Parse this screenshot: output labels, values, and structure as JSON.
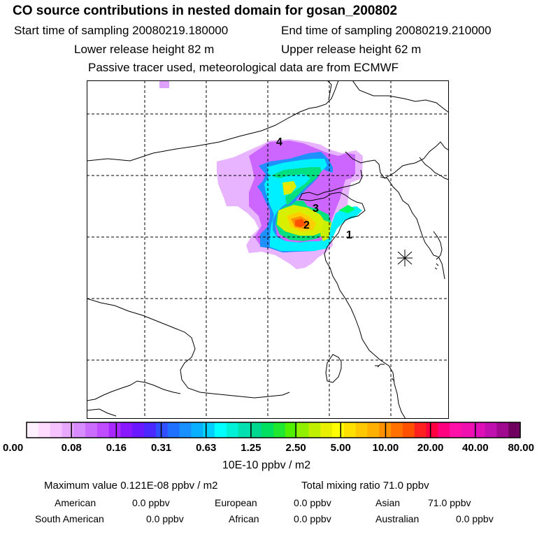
{
  "header": {
    "title": "CO  source contributions in nested domain for gosan_200802",
    "start_label": "Start time of sampling 20080219.180000",
    "end_label": "End time of sampling 20080219.210000",
    "lower_label": "Lower release height   82 m",
    "upper_label": "Upper release height   62 m",
    "note": "Passive tracer used, meteorological data are from ECMWF"
  },
  "map": {
    "markers": [
      "1",
      "2",
      "3",
      "4"
    ],
    "station_symbol": "gosan-station-star"
  },
  "colorbar": {
    "colors": [
      "#fff0ff",
      "#ffdcff",
      "#f5c4ff",
      "#e8a8ff",
      "#d88cff",
      "#cc6cff",
      "#c04cff",
      "#a828ff",
      "#8a18ff",
      "#6a18ff",
      "#4a28ff",
      "#3050ff",
      "#2070ff",
      "#1890ff",
      "#08b0ff",
      "#00d0ff",
      "#00ffff",
      "#00f0d8",
      "#00e0b0",
      "#00d890",
      "#00e060",
      "#20e830",
      "#50f000",
      "#90f000",
      "#c0f000",
      "#e8f000",
      "#ffff00",
      "#ffe000",
      "#ffc800",
      "#ffb000",
      "#ff9000",
      "#ff7000",
      "#ff5000",
      "#ff2020",
      "#ff0040",
      "#ff0080",
      "#ff10a8",
      "#f010b0",
      "#e010b8",
      "#c010b0",
      "#a00890",
      "#700060"
    ],
    "ticks": [
      "0.00",
      "0.08",
      "0.16",
      "0.31",
      "0.63",
      "1.25",
      "2.50",
      "5.00",
      "10.00",
      "20.00",
      "40.00",
      "80.00"
    ],
    "units": "10E-10 ppbv / m2"
  },
  "stats": {
    "max_label": "Maximum value  0.121E-08 ppbv / m2",
    "total_label": "Total mixing ratio       71.0 ppbv",
    "american_label": "American",
    "american_value": "0.0 ppbv",
    "european_label": "European",
    "european_value": "0.0 ppbv",
    "asian_label": "Asian",
    "asian_value": "71.0 ppbv",
    "south_american_label": "South American",
    "south_american_value": "0.0 ppbv",
    "african_label": "African",
    "african_value": "0.0 ppbv",
    "australian_label": "Australian",
    "australian_value": "0.0 ppbv"
  }
}
